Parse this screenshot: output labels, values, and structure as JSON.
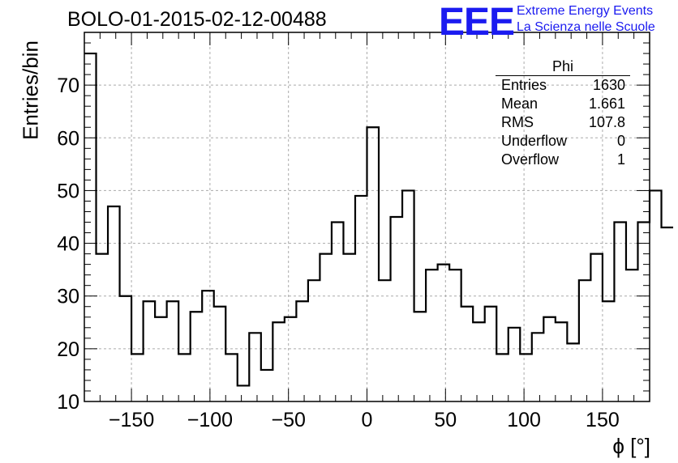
{
  "header": {
    "title": "BOLO-01-2015-02-12-00488"
  },
  "logo": {
    "mark": "EEE",
    "line1": "Extreme Energy Events",
    "line2": "La Scienza nelle Scuole",
    "color": "#1b1bf0"
  },
  "stats_box": {
    "name": "Phi",
    "rows": [
      {
        "label": "Entries",
        "value": "1630"
      },
      {
        "label": "Mean",
        "value": "1.661"
      },
      {
        "label": "RMS",
        "value": "107.8"
      },
      {
        "label": "Underflow",
        "value": "0"
      },
      {
        "label": "Overflow",
        "value": "1"
      }
    ]
  },
  "chart_data": {
    "type": "bar",
    "style": "step-histogram",
    "title": "BOLO-01-2015-02-12-00488",
    "xlabel": "ϕ [°]",
    "ylabel": "Entries/bin",
    "xlim": [
      -180,
      180
    ],
    "ylim": [
      10,
      80
    ],
    "bin_width": 7.5,
    "grid": true,
    "legend": "top-right",
    "x_ticks": [
      -150,
      -100,
      -50,
      0,
      50,
      100,
      150
    ],
    "y_ticks": [
      10,
      20,
      30,
      40,
      50,
      60,
      70
    ],
    "bin_edges_start": -180,
    "values": [
      76,
      38,
      47,
      30,
      19,
      29,
      26,
      29,
      19,
      27,
      31,
      28,
      19,
      13,
      23,
      16,
      25,
      26,
      29,
      33,
      38,
      44,
      38,
      49,
      62,
      33,
      45,
      50,
      27,
      35,
      36,
      35,
      28,
      25,
      28,
      19,
      24,
      19,
      23,
      26,
      25,
      21,
      33,
      38,
      29,
      44,
      35,
      44,
      50,
      43
    ],
    "line_color": "#000000"
  }
}
